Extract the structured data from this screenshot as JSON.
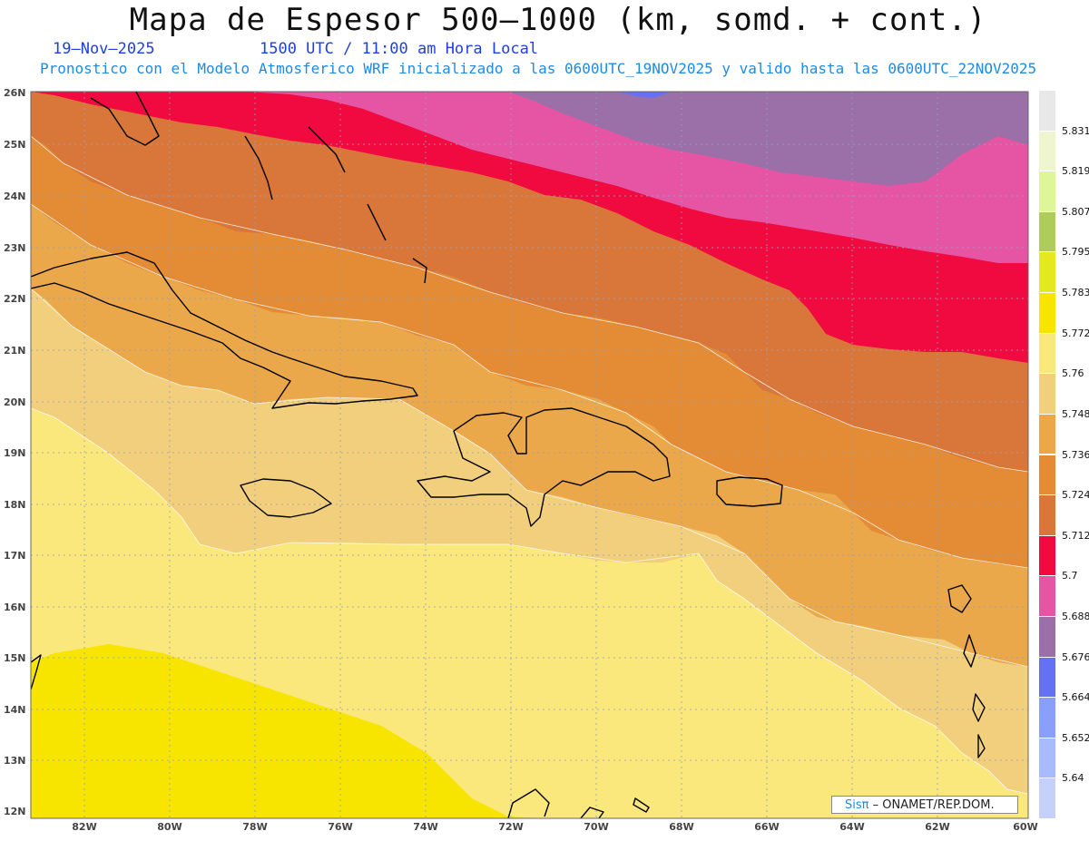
{
  "header": {
    "title": "Mapa de Espesor 500–1000 (km, somd. + cont.)",
    "date": "19–Nov–2025",
    "time": "1500 UTC / 11:00 am Hora Local",
    "subtitle": "Pronostico con el Modelo Atmosferico WRF inicializado a las 0600UTC_19NOV2025 y valido hasta las  0600UTC_22NOV2025"
  },
  "axes": {
    "lat_labels": [
      "26N",
      "25N",
      "24N",
      "23N",
      "22N",
      "21N",
      "20N",
      "19N",
      "18N",
      "17N",
      "16N",
      "15N",
      "14N",
      "13N",
      "12N"
    ],
    "lon_labels": [
      "82W",
      "80W",
      "78W",
      "76W",
      "74W",
      "72W",
      "70W",
      "68W",
      "66W",
      "64W",
      "62W",
      "60W"
    ]
  },
  "colorbar": {
    "labels": [
      "5.831",
      "5.819",
      "5.807",
      "5.795",
      "5.783",
      "5.772",
      "5.76",
      "5.748",
      "5.736",
      "5.724",
      "5.712",
      "5.7",
      "5.688",
      "5.676",
      "5.664",
      "5.652",
      "5.64"
    ],
    "colors": [
      "#e8e8e8",
      "#eef5cf",
      "#def59a",
      "#aecb5c",
      "#e4e81e",
      "#f7e500",
      "#fbe87c",
      "#f1cf7d",
      "#eaa84a",
      "#e38b35",
      "#d9773a",
      "#f00a40",
      "#e655a3",
      "#9b6fa8",
      "#6670f5",
      "#8a9ff8",
      "#a8bbfa",
      "#c5d0fb"
    ]
  },
  "credit": {
    "brand": "Sisπ",
    "text": "– ONAMET/REP.DOM."
  },
  "map_layers": [
    {
      "band": "5.700–5.712",
      "color": "#f00a40"
    },
    {
      "band": "5.688–5.700",
      "color": "#e655a3"
    },
    {
      "band": "5.676–5.688",
      "color": "#9b6fa8"
    },
    {
      "band": "5.712–5.724",
      "color": "#d9773a"
    },
    {
      "band": "5.724–5.736",
      "color": "#e38b35"
    },
    {
      "band": "5.736–5.748",
      "color": "#eaa84a"
    },
    {
      "band": "5.748–5.760",
      "color": "#f1cf7d"
    },
    {
      "band": "5.760–5.772",
      "color": "#fbe87c"
    },
    {
      "band": "5.772–5.783",
      "color": "#f7e500"
    }
  ]
}
